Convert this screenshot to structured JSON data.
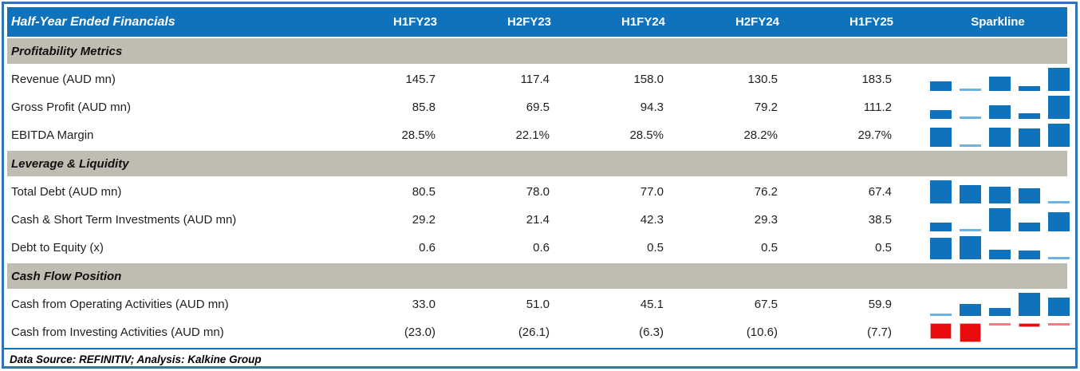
{
  "header": {
    "title": "Half-Year Ended Financials",
    "columns": [
      "H1FY23",
      "H2FY23",
      "H1FY24",
      "H2FY24",
      "H1FY25"
    ],
    "sparkline_label": "Sparkline"
  },
  "sections": [
    {
      "label": "Profitability Metrics",
      "rows": [
        {
          "label": "Revenue (AUD mn)",
          "values": [
            "145.7",
            "117.4",
            "158.0",
            "130.5",
            "183.5"
          ],
          "spark": {
            "heights": [
              0.43,
              0.02,
              0.61,
              0.2,
              1.0
            ],
            "negative": false
          }
        },
        {
          "label": "Gross Profit (AUD mn)",
          "values": [
            "85.8",
            "69.5",
            "94.3",
            "79.2",
            "111.2"
          ],
          "spark": {
            "heights": [
              0.39,
              0.02,
              0.59,
              0.23,
              1.0
            ],
            "negative": false
          }
        },
        {
          "label": "EBITDA Margin",
          "values": [
            "28.5%",
            "22.1%",
            "28.5%",
            "28.2%",
            "29.7%"
          ],
          "spark": {
            "heights": [
              0.84,
              0.02,
              0.84,
              0.8,
              1.0
            ],
            "negative": false
          }
        }
      ]
    },
    {
      "label": "Leverage & Liquidity",
      "rows": [
        {
          "label": "Total Debt (AUD mn)",
          "values": [
            "80.5",
            "78.0",
            "77.0",
            "76.2",
            "67.4"
          ],
          "spark": {
            "heights": [
              1.0,
              0.81,
              0.73,
              0.67,
              0.02
            ],
            "negative": false
          }
        },
        {
          "label": "Cash & Short Term Investments (AUD mn)",
          "values": [
            "29.2",
            "21.4",
            "42.3",
            "29.3",
            "38.5"
          ],
          "spark": {
            "heights": [
              0.37,
              0.02,
              1.0,
              0.38,
              0.82
            ],
            "negative": false
          }
        },
        {
          "label": "Debt to Equity (x)",
          "values": [
            "0.6",
            "0.6",
            "0.5",
            "0.5",
            "0.5"
          ],
          "spark": {
            "heights": [
              0.93,
              1.0,
              0.4,
              0.37,
              0.02
            ],
            "negative": false
          }
        }
      ]
    },
    {
      "label": "Cash Flow Position",
      "rows": [
        {
          "label": "Cash from Operating Activities (AUD mn)",
          "values": [
            "33.0",
            "51.0",
            "45.1",
            "67.5",
            "59.9"
          ],
          "spark": {
            "heights": [
              0.02,
              0.52,
              0.35,
              1.0,
              0.78
            ],
            "negative": false
          }
        },
        {
          "label": "Cash from Investing Activities (AUD mn)",
          "values": [
            "(23.0)",
            "(26.1)",
            "(6.3)",
            "(10.6)",
            "(7.7)"
          ],
          "spark": {
            "heights": [
              0.84,
              1.0,
              0.02,
              0.22,
              0.07
            ],
            "negative": true
          }
        }
      ]
    }
  ],
  "footer": {
    "text": "Data Source: REFINITIV; Analysis: Kalkine Group"
  },
  "colors": {
    "header_blue": "#1072BA",
    "frame_blue": "#2E75B6",
    "band_gray": "#BFBCB2",
    "bar_blue": "#1072BA",
    "bar_blue_thin": "#6CB3DF",
    "bar_red": "#EA0B0E",
    "bar_red_thin": "#F07C80"
  },
  "chart_data": {
    "type": "table",
    "title": "Half-Year Ended Financials",
    "categories": [
      "H1FY23",
      "H2FY23",
      "H1FY24",
      "H2FY24",
      "H1FY25"
    ],
    "sparkline_type": "bar",
    "series": [
      {
        "name": "Revenue (AUD mn)",
        "section": "Profitability Metrics",
        "values": [
          145.7,
          117.4,
          158.0,
          130.5,
          183.5
        ]
      },
      {
        "name": "Gross Profit (AUD mn)",
        "section": "Profitability Metrics",
        "values": [
          85.8,
          69.5,
          94.3,
          79.2,
          111.2
        ]
      },
      {
        "name": "EBITDA Margin (%)",
        "section": "Profitability Metrics",
        "values": [
          28.5,
          22.1,
          28.5,
          28.2,
          29.7
        ]
      },
      {
        "name": "Total Debt (AUD mn)",
        "section": "Leverage & Liquidity",
        "values": [
          80.5,
          78.0,
          77.0,
          76.2,
          67.4
        ]
      },
      {
        "name": "Cash & Short Term Investments (AUD mn)",
        "section": "Leverage & Liquidity",
        "values": [
          29.2,
          21.4,
          42.3,
          29.3,
          38.5
        ]
      },
      {
        "name": "Debt to Equity (x)",
        "section": "Leverage & Liquidity",
        "values": [
          0.6,
          0.6,
          0.5,
          0.5,
          0.5
        ]
      },
      {
        "name": "Cash from Operating Activities (AUD mn)",
        "section": "Cash Flow Position",
        "values": [
          33.0,
          51.0,
          45.1,
          67.5,
          59.9
        ]
      },
      {
        "name": "Cash from Investing Activities (AUD mn)",
        "section": "Cash Flow Position",
        "values": [
          -23.0,
          -26.1,
          -6.3,
          -10.6,
          -7.7
        ]
      }
    ],
    "footnote": "Data Source: REFINITIV; Analysis: Kalkine Group"
  }
}
